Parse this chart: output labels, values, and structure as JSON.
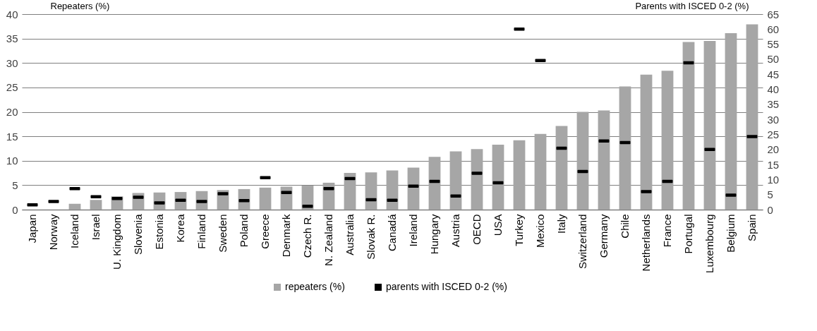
{
  "chart_data": {
    "type": "bar",
    "ylabel": "Repeaters (%)",
    "y2label": "Parents with  ISCED 0-2 (%)",
    "categories": [
      "Japan",
      "Norway",
      "Iceland",
      "Israel",
      "U. Kingdom",
      "Slovenia",
      "Estonia",
      "Korea",
      "Finland",
      "Sweden",
      "Poland",
      "Greece",
      "Denmark",
      "Czech R.",
      "N. Zealand",
      "Australia",
      "Slovak R.",
      "Canadá",
      "Ireland",
      "Hungary",
      "Austria",
      "OECD",
      "USA",
      "Turkey",
      "Mexico",
      "Italy",
      "Switzerland",
      "Germany",
      "Chile",
      "Netherlands",
      "France",
      "Portugal",
      "Luxembourg",
      "Belgium",
      "Spain"
    ],
    "series": [
      {
        "name": "repeaters (%)",
        "color": "#a6a6a6",
        "values": [
          0,
          0,
          1.2,
          2.0,
          2.7,
          3.4,
          3.5,
          3.6,
          3.8,
          4.0,
          4.2,
          4.5,
          4.7,
          4.9,
          5.5,
          7.5,
          7.6,
          8.0,
          8.6,
          10.8,
          11.9,
          12.4,
          13.3,
          14.2,
          15.5,
          17.1,
          20.0,
          20.3,
          25.2,
          27.6,
          28.4,
          34.3,
          34.5,
          36.1,
          37.9
        ]
      },
      {
        "name": "parents with ISCED 0-2 (%)",
        "type": "scatter",
        "axis": "y2",
        "color": "#000000",
        "values": [
          1.6,
          2.7,
          7.0,
          4.3,
          3.7,
          4.1,
          2.2,
          3.1,
          2.7,
          5.3,
          3.0,
          10.6,
          5.7,
          1.1,
          7.0,
          10.3,
          3.3,
          3.1,
          7.8,
          9.4,
          4.5,
          12.1,
          8.9,
          60,
          49.6,
          20.4,
          12.7,
          22.8,
          22.3,
          6.0,
          9.4,
          48.8,
          20.0,
          4.8,
          24.3
        ]
      }
    ],
    "ylim": [
      0,
      40
    ],
    "yticks": [
      0,
      5,
      10,
      15,
      20,
      25,
      30,
      35,
      40
    ],
    "y2lim": [
      0,
      65
    ],
    "y2ticks": [
      0,
      5,
      10,
      15,
      20,
      25,
      30,
      35,
      40,
      45,
      50,
      55,
      60,
      65
    ],
    "grid": true,
    "legend": "bottom"
  }
}
